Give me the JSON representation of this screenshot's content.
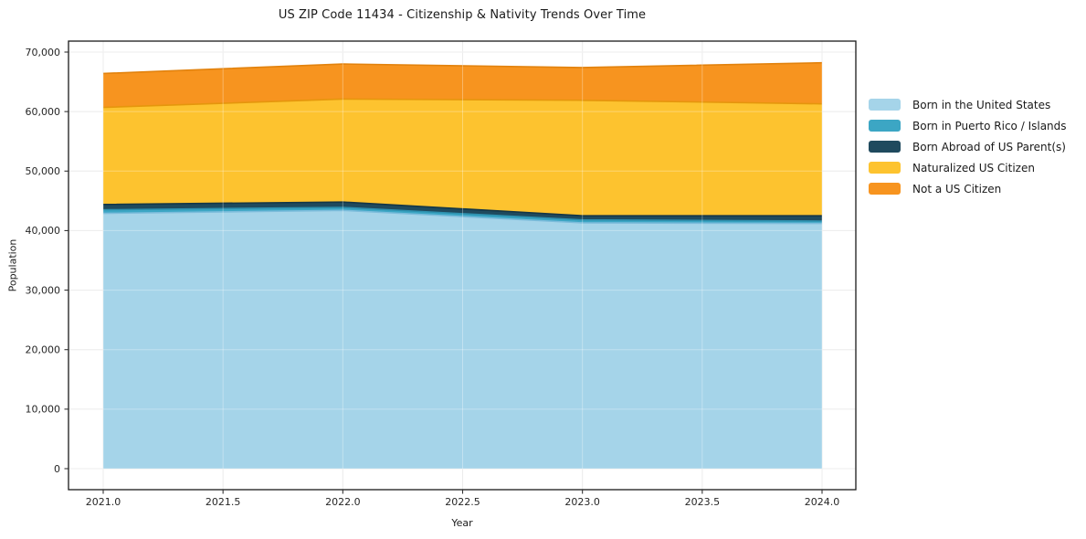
{
  "title": "US ZIP Code 11434 - Citizenship & Nativity Trends Over Time",
  "chart_data": {
    "type": "area",
    "stacked": true,
    "title": "US ZIP Code 11434 - Citizenship & Nativity Trends Over Time",
    "xlabel": "Year",
    "ylabel": "Population",
    "x": [
      2021,
      2022,
      2023,
      2024
    ],
    "xlim": [
      2020.855,
      2024.14
    ],
    "ylim": [
      0,
      70000
    ],
    "grid": true,
    "legend_position": "right-outside",
    "x_ticks": [
      {
        "v": 2021.0,
        "label": "2021.0"
      },
      {
        "v": 2021.5,
        "label": "2021.5"
      },
      {
        "v": 2022.0,
        "label": "2022.0"
      },
      {
        "v": 2022.5,
        "label": "2022.5"
      },
      {
        "v": 2023.0,
        "label": "2023.0"
      },
      {
        "v": 2023.5,
        "label": "2023.5"
      },
      {
        "v": 2024.0,
        "label": "2024.0"
      }
    ],
    "y_ticks": [
      {
        "v": 0,
        "label": "0"
      },
      {
        "v": 10000,
        "label": "10,000"
      },
      {
        "v": 20000,
        "label": "20,000"
      },
      {
        "v": 30000,
        "label": "30,000"
      },
      {
        "v": 40000,
        "label": "40,000"
      },
      {
        "v": 50000,
        "label": "50,000"
      },
      {
        "v": 60000,
        "label": "60,000"
      },
      {
        "v": 70000,
        "label": "70,000"
      }
    ],
    "series": [
      {
        "name": "Born in the United States",
        "color": "#A5D4E9",
        "edge": "#7CBCDB",
        "values": [
          42900,
          43400,
          41300,
          41200
        ]
      },
      {
        "name": "Born in Puerto Rico / Islands",
        "color": "#3CA6C4",
        "edge": "#2D90AE",
        "values": [
          600,
          500,
          500,
          400
        ]
      },
      {
        "name": "Born Abroad of US Parent(s)",
        "color": "#1F4A5E",
        "edge": "#143647",
        "values": [
          900,
          900,
          700,
          900
        ]
      },
      {
        "name": "Naturalized US Citizen",
        "color": "#FDC32F",
        "edge": "#E5960C",
        "values": [
          16300,
          17300,
          19400,
          18800
        ]
      },
      {
        "name": "Not a US Citizen",
        "color": "#F7941F",
        "edge": "#E2820D",
        "values": [
          5700,
          5900,
          5500,
          6900
        ]
      }
    ],
    "colors": {
      "grid": "#e4e4e4",
      "plot_border": "#1a1a1a",
      "tick": "#333333",
      "tick_label": "#262626"
    }
  }
}
